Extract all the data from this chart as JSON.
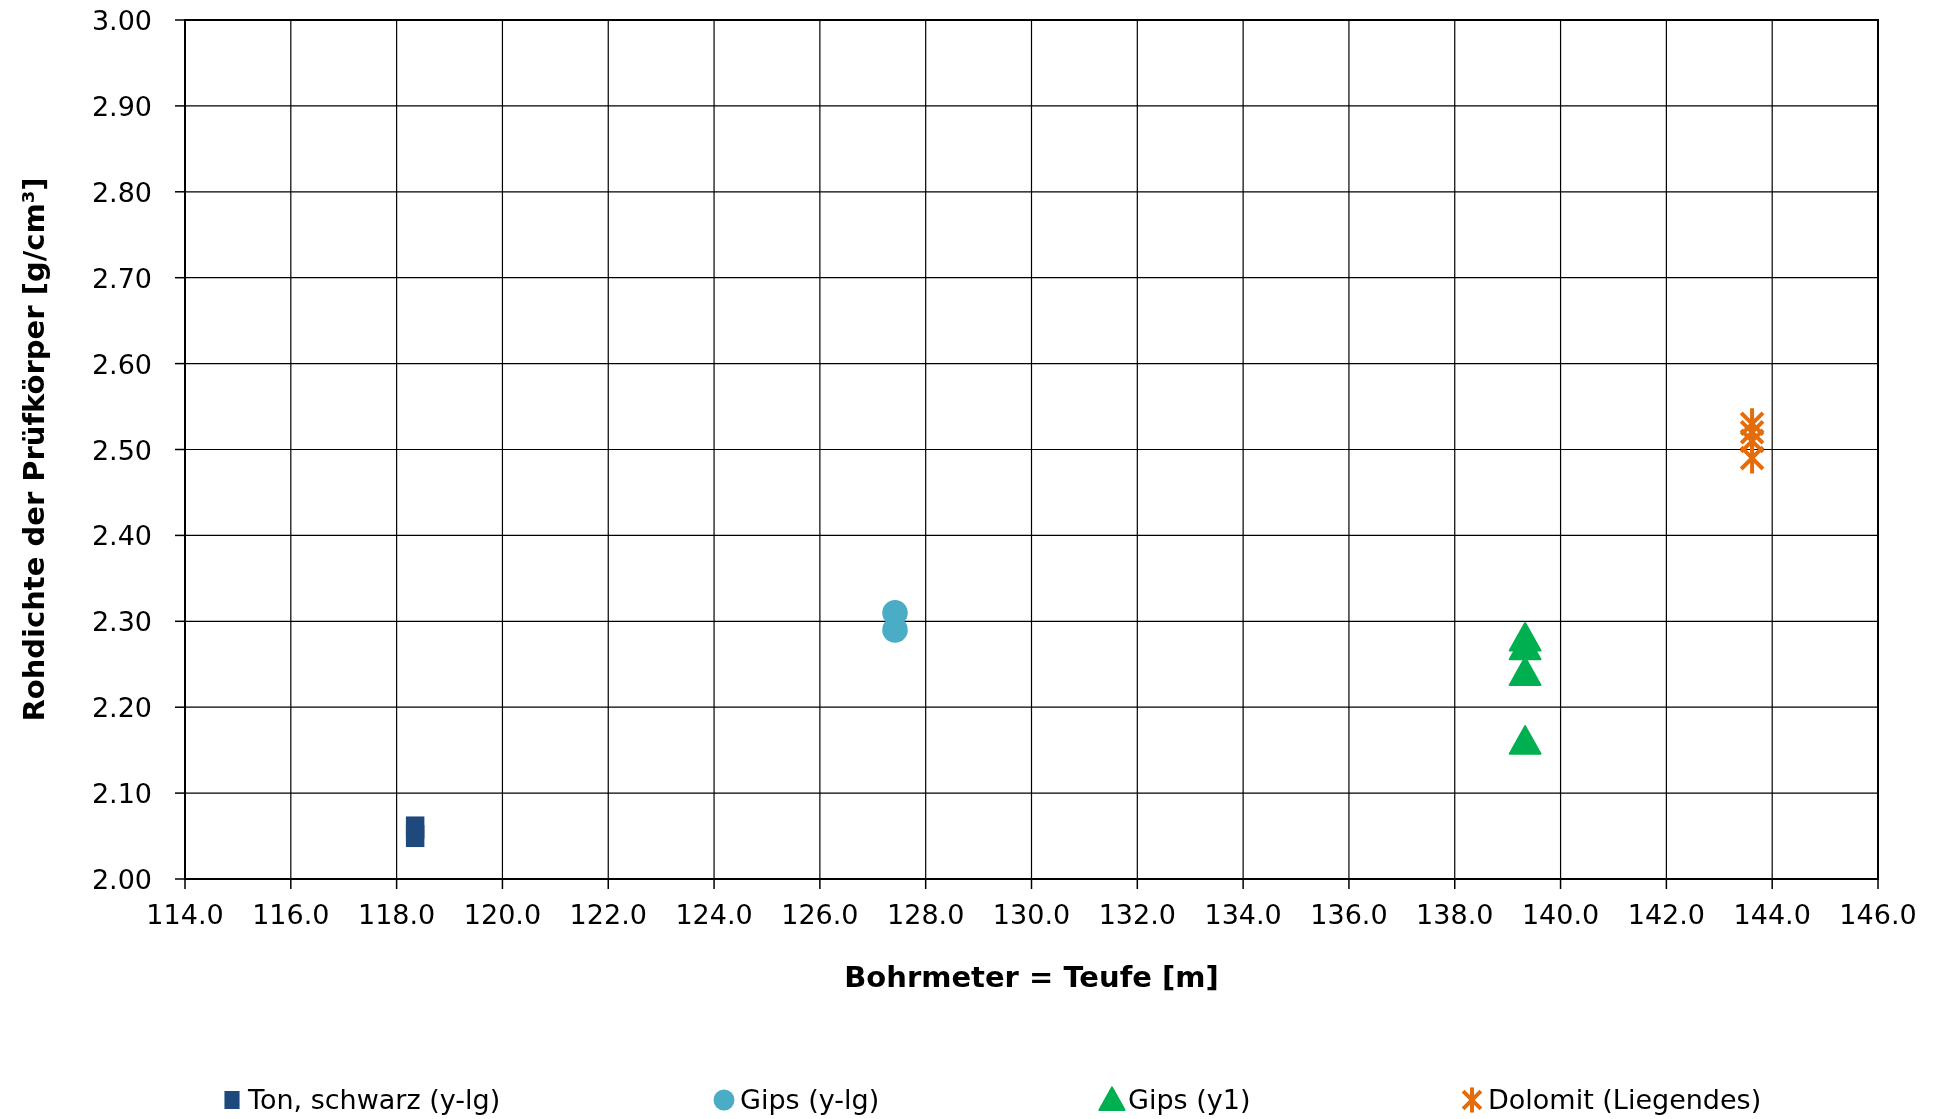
{
  "chart_data": {
    "type": "scatter",
    "xlabel": "Bohrmeter = Teufe [m]",
    "ylabel": "Rohdichte der Prüfkörper [g/cm³]",
    "xlim": [
      114,
      146
    ],
    "xticks": [
      {
        "value": 114,
        "label": "114.0"
      },
      {
        "value": 116,
        "label": "116.0"
      },
      {
        "value": 118,
        "label": "118.0"
      },
      {
        "value": 120,
        "label": "120.0"
      },
      {
        "value": 122,
        "label": "122.0"
      },
      {
        "value": 124,
        "label": "124.0"
      },
      {
        "value": 126,
        "label": "126.0"
      },
      {
        "value": 128,
        "label": "128.0"
      },
      {
        "value": 130,
        "label": "130.0"
      },
      {
        "value": 132,
        "label": "132.0"
      },
      {
        "value": 134,
        "label": "134.0"
      },
      {
        "value": 136,
        "label": "136.0"
      },
      {
        "value": 138,
        "label": "138.0"
      },
      {
        "value": 140,
        "label": "140.0"
      },
      {
        "value": 142,
        "label": "142.0"
      },
      {
        "value": 144,
        "label": "144.0"
      },
      {
        "value": 146,
        "label": "146.0"
      }
    ],
    "ylim": [
      2,
      3
    ],
    "yticks": [
      {
        "value": 2,
        "label": "2.00"
      },
      {
        "value": 2.1,
        "label": "2.10"
      },
      {
        "value": 2.2,
        "label": "2.20"
      },
      {
        "value": 2.3,
        "label": "2.30"
      },
      {
        "value": 2.4,
        "label": "2.40"
      },
      {
        "value": 2.5,
        "label": "2.50"
      },
      {
        "value": 2.6,
        "label": "2.60"
      },
      {
        "value": 2.7,
        "label": "2.70"
      },
      {
        "value": 2.8,
        "label": "2.80"
      },
      {
        "value": 2.9,
        "label": "2.90"
      },
      {
        "value": 3,
        "label": "3.00"
      }
    ],
    "grid": true,
    "legend": "bottom",
    "series": [
      {
        "name": "Ton, schwarz (y-lg)",
        "color": "#1f497d",
        "marker": "square",
        "x": [
          118.35,
          118.35
        ],
        "values": [
          2.06,
          2.05
        ]
      },
      {
        "name": "Gips (y-lg)",
        "color": "#4bacc6",
        "marker": "circle",
        "x": [
          127.42,
          127.42
        ],
        "values": [
          2.31,
          2.29
        ]
      },
      {
        "name": "Gips (y1)",
        "color": "#00b050",
        "marker": "triangle",
        "x": [
          139.33,
          139.33,
          139.33,
          139.33
        ],
        "values": [
          2.28,
          2.27,
          2.24,
          2.16
        ]
      },
      {
        "name": "Dolomit (Liegendes)",
        "color": "#e46c0a",
        "marker": "star",
        "x": [
          143.62,
          143.62,
          143.62,
          143.62
        ],
        "values": [
          2.53,
          2.52,
          2.51,
          2.49
        ]
      }
    ]
  }
}
